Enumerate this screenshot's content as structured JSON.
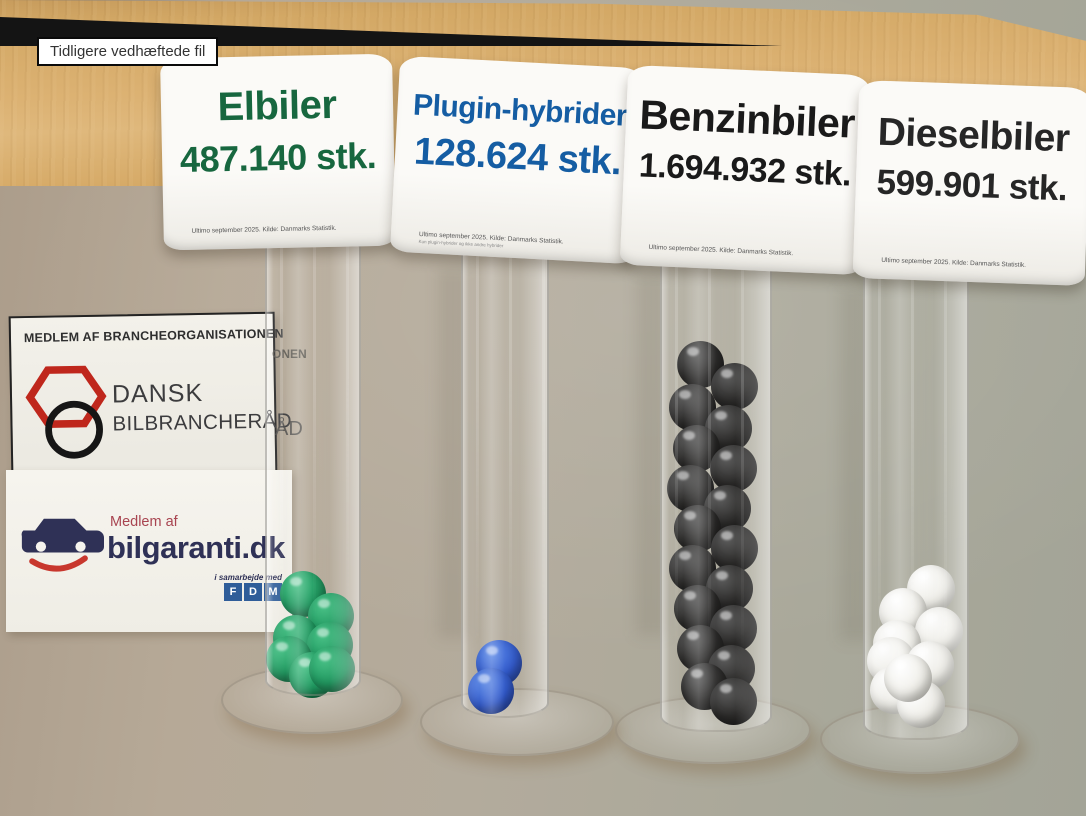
{
  "tooltip": {
    "label": "Tidligere vedhæftede fil"
  },
  "signs": [
    {
      "title": "Elbiler",
      "count": "487.140 stk.",
      "fine_print": "Ultimo september 2025. Kilde: Danmarks Statistik.",
      "color": "#17673f"
    },
    {
      "title": "Plugin-hybrider",
      "count": "128.624 stk.",
      "fine_print": "Ultimo september 2025. Kilde: Danmarks Statistik.",
      "fine_print_2": "Kun plugin-hybrider og ikke andre hybrider",
      "color": "#155da3"
    },
    {
      "title": "Benzinbiler",
      "count": "1.694.932 stk.",
      "fine_print": "Ultimo september 2025. Kilde: Danmarks Statistik.",
      "color": "#1a1a1a"
    },
    {
      "title": "Dieselbiler",
      "count": "599.901 stk.",
      "fine_print": "Ultimo september 2025. Kilde: Danmarks Statistik.",
      "color": "#262626"
    }
  ],
  "board": {
    "header": "MEDLEM AF BRANCHEORGANISATIONEN",
    "org_line1": "DANSK",
    "org_line2": "BILBRANCHERÅD",
    "member_label": "Medlem af",
    "brand": "bilgaranti.dk",
    "partner_label": "i samarbejde med",
    "fdm_f": "F",
    "fdm_d": "D",
    "fdm_m": "M",
    "refraction_header_tail": "ONEN",
    "refraction_org_tail": "ÅD"
  },
  "palette": {
    "wall": "#aea699",
    "table_wood": "#d7ab69",
    "floor": "#141414",
    "sign_paper": "#f7f5f0",
    "brand_navy": "#2f3156",
    "brand_red": "#a84450",
    "bilbrancheraad_red": "#bf271c",
    "fdm_blue": "#2f5d99"
  },
  "tubes": [
    {
      "name": "elbiler-tube",
      "ball_name": "green-ball",
      "ball_diameter": 46,
      "ball_highlight": "#43c184",
      "ball_color": "#17955a",
      "ball_shadow": "#0a5531",
      "balls": [
        [
          303,
          594
        ],
        [
          331,
          616
        ],
        [
          296,
          638
        ],
        [
          330,
          645
        ],
        [
          289,
          659
        ],
        [
          312,
          675
        ],
        [
          332,
          669
        ]
      ]
    },
    {
      "name": "plugin-hybrid-tube",
      "ball_name": "blue-ball",
      "ball_diameter": 46,
      "ball_highlight": "#5c8ae8",
      "ball_color": "#2b55cc",
      "ball_shadow": "#142f85",
      "balls": [
        [
          499,
          663
        ],
        [
          491,
          691
        ]
      ]
    },
    {
      "name": "benzin-tube",
      "ball_name": "black-ball",
      "ball_diameter": 47,
      "ball_highlight": "#585858",
      "ball_color": "#232221",
      "ball_shadow": "#060606",
      "balls": [
        [
          700,
          364
        ],
        [
          734,
          386
        ],
        [
          692,
          407
        ],
        [
          728,
          428
        ],
        [
          696,
          448
        ],
        [
          733,
          468
        ],
        [
          690,
          488
        ],
        [
          727,
          508
        ],
        [
          697,
          528
        ],
        [
          734,
          548
        ],
        [
          692,
          568
        ],
        [
          729,
          588
        ],
        [
          697,
          608
        ],
        [
          733,
          628
        ],
        [
          700,
          648
        ],
        [
          731,
          668
        ],
        [
          704,
          686
        ],
        [
          733,
          701
        ]
      ]
    },
    {
      "name": "diesel-tube",
      "ball_name": "white-ball",
      "ball_diameter": 48,
      "ball_highlight": "#ffffff",
      "ball_color": "#efeee8",
      "ball_shadow": "#c2c1b8",
      "balls": [
        [
          931,
          589
        ],
        [
          903,
          612
        ],
        [
          939,
          631
        ],
        [
          897,
          644
        ],
        [
          891,
          661
        ],
        [
          930,
          665
        ],
        [
          894,
          690
        ],
        [
          921,
          704
        ],
        [
          908,
          678
        ]
      ]
    }
  ],
  "chart_data": {
    "type": "bar",
    "title": "",
    "categories": [
      "Elbiler",
      "Plugin-hybrider",
      "Benzinbiler",
      "Dieselbiler"
    ],
    "values": [
      487140,
      128624,
      1694932,
      599901
    ],
    "series_colors": [
      "#17955a",
      "#2b55cc",
      "#232221",
      "#efeee8"
    ],
    "balls_visible_per_tube": [
      7,
      2,
      18,
      9
    ],
    "source": "Ultimo september 2025. Kilde: Danmarks Statistik."
  }
}
